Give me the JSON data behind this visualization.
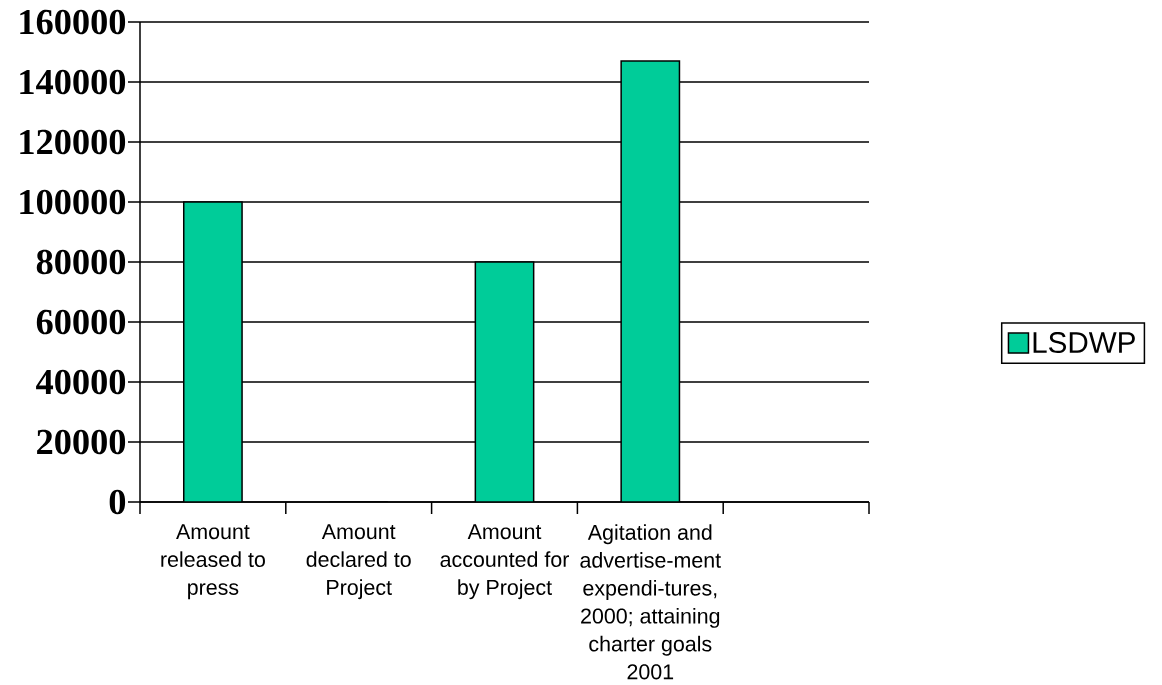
{
  "chart_data": {
    "type": "bar",
    "categories": [
      "Amount released to press",
      "Amount declared to Project",
      "Amount accounted for by Project",
      "Agitation and advertise-ment expendi-tures, 2000; attaining charter goals 2001",
      null
    ],
    "series": [
      {
        "name": "LSDWP",
        "color": "#00cc99",
        "values": [
          100000,
          0,
          80000,
          147000,
          null
        ]
      }
    ],
    "ylim": [
      0,
      160000
    ],
    "yticks": [
      0,
      20000,
      40000,
      60000,
      80000,
      100000,
      120000,
      140000,
      160000
    ],
    "grid": "y",
    "legend": "right"
  }
}
